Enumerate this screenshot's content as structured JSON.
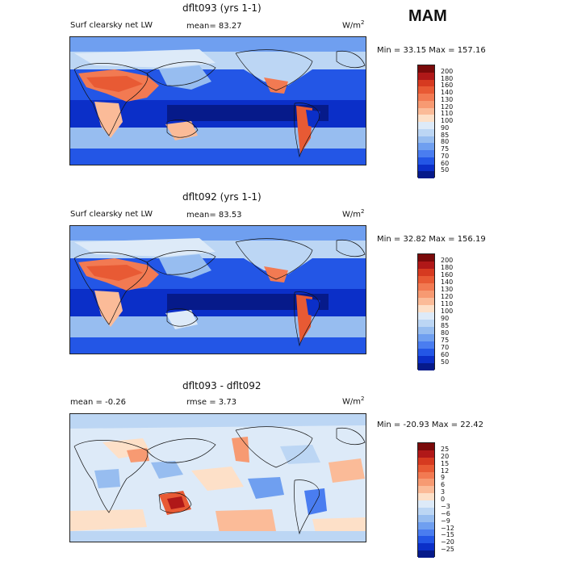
{
  "season": "MAM",
  "panels": [
    {
      "title": "dflt093 (yrs 1-1)",
      "left_label": "Surf clearsky net LW",
      "mid_label": "mean=  83.27",
      "units": "W/m",
      "units_exp": "2",
      "minmax": "Min =  33.15 Max = 157.16",
      "ticks": [
        "200",
        "180",
        "160",
        "140",
        "130",
        "120",
        "110",
        "100",
        "90",
        "85",
        "80",
        "75",
        "70",
        "60",
        "50"
      ],
      "colors": [
        "#7a0a0a",
        "#b01818",
        "#d63a20",
        "#e85a34",
        "#f27a52",
        "#f79a72",
        "#fbbb98",
        "#fde0c8",
        "#ddeaf8",
        "#bcd6f4",
        "#97bdf0",
        "#6f9ff0",
        "#4a7df0",
        "#2356e6",
        "#0b2fc8",
        "#061a8a"
      ]
    },
    {
      "title": "dflt092 (yrs 1-1)",
      "left_label": "Surf clearsky net LW",
      "mid_label": "mean=  83.53",
      "units": "W/m",
      "units_exp": "2",
      "minmax": "Min =  32.82 Max = 156.19",
      "ticks": [
        "200",
        "180",
        "160",
        "140",
        "130",
        "120",
        "110",
        "100",
        "90",
        "85",
        "80",
        "75",
        "70",
        "60",
        "50"
      ],
      "colors": [
        "#7a0a0a",
        "#b01818",
        "#d63a20",
        "#e85a34",
        "#f27a52",
        "#f79a72",
        "#fbbb98",
        "#fde0c8",
        "#ddeaf8",
        "#bcd6f4",
        "#97bdf0",
        "#6f9ff0",
        "#4a7df0",
        "#2356e6",
        "#0b2fc8",
        "#061a8a"
      ]
    },
    {
      "title": "dflt093 - dflt092",
      "left_label": "mean =  -0.26",
      "mid_label": "rmse =   3.73",
      "units": "W/m",
      "units_exp": "2",
      "minmax": "Min = -20.93 Max =  22.42",
      "ticks": [
        "25",
        "20",
        "15",
        "12",
        "9",
        "6",
        "3",
        "0",
        "−3",
        "−6",
        "−9",
        "−12",
        "−15",
        "−20",
        "−25"
      ],
      "colors": [
        "#7a0a0a",
        "#b01818",
        "#d63a20",
        "#e85a34",
        "#f27a52",
        "#f79a72",
        "#fbbb98",
        "#fde0c8",
        "#ddeaf8",
        "#bcd6f4",
        "#97bdf0",
        "#6f9ff0",
        "#4a7df0",
        "#2356e6",
        "#0b2fc8",
        "#061a8a"
      ]
    }
  ]
}
